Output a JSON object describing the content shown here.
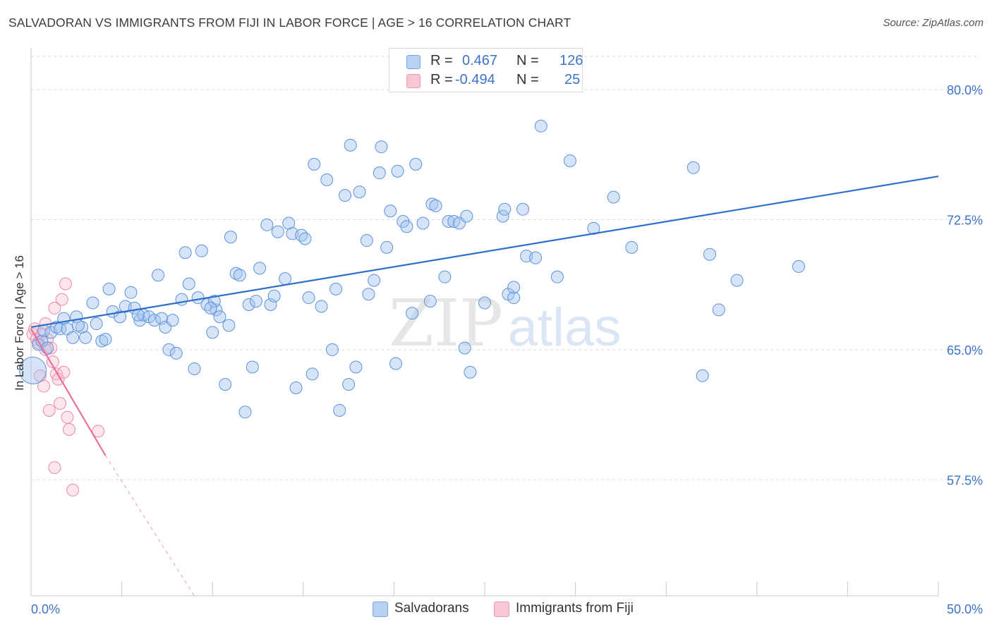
{
  "title": "SALVADORAN VS IMMIGRANTS FROM FIJI IN LABOR FORCE | AGE > 16 CORRELATION CHART",
  "source": "Source: ZipAtlas.com",
  "watermark": {
    "zip": "ZIP",
    "atlas": "atlas"
  },
  "legend_top": {
    "r_label": "R =",
    "n_label": "N =",
    "rows": [
      {
        "r": "0.467",
        "n": "126",
        "fill": "#b8d0f2",
        "stroke": "#7aa7e0"
      },
      {
        "r": "-0.494",
        "n": "25",
        "fill": "#f9c6d4",
        "stroke": "#ef9ab3"
      }
    ]
  },
  "legend_bottom": [
    {
      "label": "Salvadorans",
      "fill": "#b8d0f2",
      "stroke": "#7aa7e0"
    },
    {
      "label": "Immigrants from Fiji",
      "fill": "#f9c6d4",
      "stroke": "#ef9ab3"
    }
  ],
  "colors": {
    "blue_fill": "rgba(163,196,240,0.45)",
    "blue_stroke": "#5d93dc",
    "blue_line": "#2f6fcc",
    "pink_fill": "rgba(248,190,208,0.4)",
    "pink_stroke": "#ea8aa8",
    "pink_line": "#e8709a",
    "grid": "#dcdcdc",
    "axis_tick_text": "#3d74c8"
  },
  "chart_data": {
    "type": "scatter",
    "title": "SALVADORAN VS IMMIGRANTS FROM FIJI IN LABOR FORCE | AGE > 16 CORRELATION CHART",
    "xlabel": "",
    "ylabel": "In Labor Force | Age > 16",
    "xlim": [
      0,
      50
    ],
    "ylim": [
      50.8,
      82
    ],
    "x_tick_labels": [
      "0.0%",
      "50.0%"
    ],
    "y_ticks": [
      57.5,
      65.0,
      72.5,
      80.0
    ],
    "y_tick_labels": [
      "57.5%",
      "65.0%",
      "72.5%",
      "80.0%"
    ],
    "grid": true,
    "legend_position": "top-center",
    "series": [
      {
        "name": "Salvadorans",
        "r": 0.467,
        "n": 126,
        "trend": {
          "x": [
            0,
            50
          ],
          "y": [
            66.3,
            75.0
          ]
        },
        "points": [
          [
            0.1,
            63.8
          ],
          [
            0.4,
            65.3
          ],
          [
            0.6,
            65.5
          ],
          [
            0.7,
            66.1
          ],
          [
            0.9,
            65.1
          ],
          [
            1.1,
            66.0
          ],
          [
            1.4,
            66.3
          ],
          [
            1.6,
            66.2
          ],
          [
            1.8,
            66.8
          ],
          [
            2.0,
            66.2
          ],
          [
            2.3,
            65.7
          ],
          [
            2.5,
            66.9
          ],
          [
            2.8,
            66.3
          ],
          [
            3.0,
            65.7
          ],
          [
            3.4,
            67.7
          ],
          [
            3.6,
            66.5
          ],
          [
            3.9,
            65.5
          ],
          [
            4.1,
            65.6
          ],
          [
            4.3,
            68.5
          ],
          [
            4.5,
            67.2
          ],
          [
            4.9,
            66.9
          ],
          [
            5.2,
            67.5
          ],
          [
            5.5,
            68.3
          ],
          [
            5.7,
            67.4
          ],
          [
            6.0,
            66.7
          ],
          [
            6.2,
            67.0
          ],
          [
            6.5,
            66.9
          ],
          [
            6.8,
            66.7
          ],
          [
            7.0,
            69.3
          ],
          [
            7.2,
            66.8
          ],
          [
            7.4,
            66.3
          ],
          [
            7.6,
            65.0
          ],
          [
            7.8,
            66.7
          ],
          [
            8.0,
            64.8
          ],
          [
            8.3,
            67.9
          ],
          [
            8.5,
            70.6
          ],
          [
            8.7,
            68.8
          ],
          [
            9.0,
            63.9
          ],
          [
            9.2,
            68.0
          ],
          [
            9.4,
            70.7
          ],
          [
            9.7,
            67.6
          ],
          [
            10.0,
            66.0
          ],
          [
            10.2,
            67.3
          ],
          [
            10.4,
            66.9
          ],
          [
            10.7,
            63.0
          ],
          [
            10.9,
            66.4
          ],
          [
            11.0,
            71.5
          ],
          [
            11.3,
            69.4
          ],
          [
            11.5,
            69.3
          ],
          [
            11.8,
            61.4
          ],
          [
            12.0,
            67.6
          ],
          [
            12.2,
            64.0
          ],
          [
            12.4,
            67.8
          ],
          [
            12.6,
            69.7
          ],
          [
            13.0,
            72.2
          ],
          [
            13.2,
            67.6
          ],
          [
            13.4,
            68.1
          ],
          [
            13.6,
            71.8
          ],
          [
            14.0,
            69.1
          ],
          [
            14.2,
            72.3
          ],
          [
            14.4,
            71.7
          ],
          [
            14.6,
            62.8
          ],
          [
            14.9,
            71.6
          ],
          [
            15.1,
            71.4
          ],
          [
            15.5,
            63.6
          ],
          [
            15.6,
            75.7
          ],
          [
            16.0,
            67.5
          ],
          [
            16.3,
            74.8
          ],
          [
            16.6,
            65.0
          ],
          [
            16.8,
            68.5
          ],
          [
            17.0,
            61.5
          ],
          [
            17.3,
            73.9
          ],
          [
            17.5,
            63.0
          ],
          [
            17.6,
            76.8
          ],
          [
            17.9,
            64.0
          ],
          [
            18.1,
            74.1
          ],
          [
            18.5,
            71.3
          ],
          [
            18.9,
            69.0
          ],
          [
            19.2,
            75.2
          ],
          [
            19.3,
            76.7
          ],
          [
            19.6,
            70.9
          ],
          [
            19.8,
            73.0
          ],
          [
            20.1,
            64.2
          ],
          [
            20.2,
            75.3
          ],
          [
            20.5,
            72.4
          ],
          [
            20.7,
            72.1
          ],
          [
            21.0,
            67.1
          ],
          [
            21.2,
            75.7
          ],
          [
            21.6,
            72.3
          ],
          [
            22.0,
            67.8
          ],
          [
            22.1,
            73.4
          ],
          [
            22.3,
            73.3
          ],
          [
            22.8,
            69.2
          ],
          [
            23.0,
            72.4
          ],
          [
            23.3,
            72.4
          ],
          [
            23.6,
            72.3
          ],
          [
            23.9,
            65.1
          ],
          [
            24.0,
            72.7
          ],
          [
            24.2,
            63.7
          ],
          [
            25.0,
            67.7
          ],
          [
            26.0,
            72.7
          ],
          [
            26.1,
            73.1
          ],
          [
            26.3,
            68.2
          ],
          [
            26.6,
            68.0
          ],
          [
            26.6,
            68.6
          ],
          [
            27.1,
            73.1
          ],
          [
            27.3,
            70.4
          ],
          [
            27.8,
            70.3
          ],
          [
            28.1,
            77.9
          ],
          [
            29.0,
            69.2
          ],
          [
            29.7,
            75.9
          ],
          [
            31.0,
            72.0
          ],
          [
            32.1,
            73.8
          ],
          [
            33.1,
            70.9
          ],
          [
            36.5,
            75.5
          ],
          [
            37.0,
            63.5
          ],
          [
            37.4,
            70.5
          ],
          [
            37.9,
            67.3
          ],
          [
            38.9,
            69.0
          ],
          [
            42.3,
            69.8
          ],
          [
            10.1,
            67.8
          ],
          [
            15.3,
            68.0
          ],
          [
            5.9,
            67.0
          ],
          [
            2.6,
            66.4
          ],
          [
            18.6,
            68.2
          ],
          [
            9.9,
            67.4
          ]
        ]
      },
      {
        "name": "Immigrants from Fiji",
        "r": -0.494,
        "n": 25,
        "trend": {
          "x": [
            0,
            4.1
          ],
          "y": [
            66.2,
            58.9
          ]
        },
        "trend_extension": {
          "x": [
            4.1,
            9.0
          ],
          "y": [
            58.9,
            50.8
          ]
        },
        "points": [
          [
            0.1,
            65.9
          ],
          [
            0.2,
            66.2
          ],
          [
            0.3,
            65.6
          ],
          [
            0.4,
            65.4
          ],
          [
            0.5,
            63.5
          ],
          [
            0.6,
            65.9
          ],
          [
            0.7,
            62.9
          ],
          [
            0.8,
            66.5
          ],
          [
            0.9,
            65.6
          ],
          [
            1.0,
            61.5
          ],
          [
            1.1,
            65.1
          ],
          [
            1.2,
            64.3
          ],
          [
            1.3,
            67.4
          ],
          [
            1.3,
            58.2
          ],
          [
            1.4,
            63.6
          ],
          [
            1.5,
            63.3
          ],
          [
            1.6,
            61.9
          ],
          [
            1.7,
            67.9
          ],
          [
            1.8,
            63.7
          ],
          [
            1.9,
            68.8
          ],
          [
            2.0,
            61.1
          ],
          [
            2.1,
            60.4
          ],
          [
            2.3,
            56.9
          ],
          [
            3.7,
            60.3
          ],
          [
            0.8,
            65.0
          ]
        ]
      }
    ]
  }
}
